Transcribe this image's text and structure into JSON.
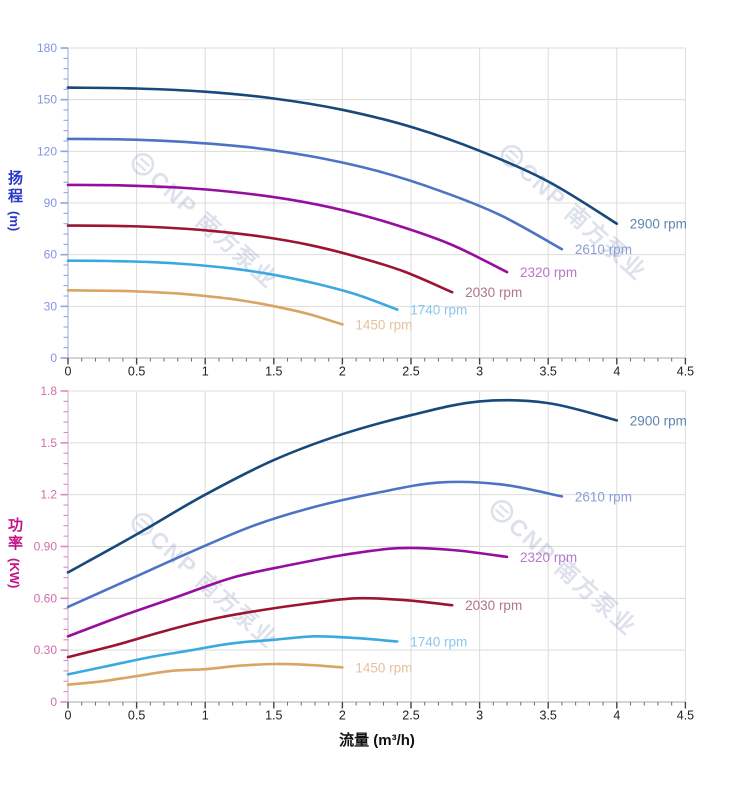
{
  "watermark": {
    "text": "CNP 南方泵业",
    "logo": "cnp-circle-logo",
    "color": "#7d8fba"
  },
  "xlabel": "流量 (m³/h)",
  "chart_data": [
    {
      "type": "line",
      "name": "head-curve-chart",
      "ylabel": "扬程",
      "ylabel_unit": "(m)",
      "ylim": [
        0,
        180
      ],
      "ytick_major": 30,
      "ytick_minor": 6,
      "ytick_labels": [
        "180",
        "150",
        "120",
        "90",
        "60",
        "30",
        "0"
      ],
      "xlim": [
        0,
        4.5
      ],
      "xtick_major": 0.5,
      "xtick_minor": 0.1,
      "xtick_labels": [
        "0",
        "0.5",
        "1",
        "1.5",
        "2",
        "2.5",
        "3",
        "3.5",
        "4",
        "4.5"
      ],
      "grid": "on",
      "legend_position": "end-of-curve",
      "axis_title_color": "#2638c8",
      "tick_label_color": "#8495e2",
      "tick_color": "#94a2e6",
      "series": [
        {
          "name": "2900 rpm",
          "color": "#17497a",
          "label_color": "#5d85ad",
          "x": [
            0,
            0.5,
            1,
            1.5,
            2,
            2.5,
            3,
            3.5,
            4
          ],
          "y": [
            157,
            156.5,
            154.6,
            150.7,
            144.1,
            134.2,
            120.3,
            102.5,
            78
          ]
        },
        {
          "name": "2610 rpm",
          "color": "#4d74c4",
          "label_color": "#8b9ed6",
          "x": [
            0,
            0.45,
            0.9,
            1.35,
            1.8,
            2.25,
            2.7,
            3.15,
            3.6
          ],
          "y": [
            127.2,
            126.8,
            125.2,
            122.1,
            116.7,
            108.7,
            97.4,
            83,
            63.2
          ]
        },
        {
          "name": "2320 rpm",
          "color": "#970da0",
          "label_color": "#b778c8",
          "x": [
            0,
            0.4,
            0.8,
            1.2,
            1.6,
            2,
            2.4,
            2.8,
            3.2
          ],
          "y": [
            100.5,
            100.2,
            99,
            96.4,
            92.2,
            85.9,
            77,
            65.6,
            49.9
          ]
        },
        {
          "name": "2030 rpm",
          "color": "#9c1432",
          "label_color": "#b17585",
          "x": [
            0,
            0.35,
            0.7,
            1.05,
            1.4,
            1.75,
            2.1,
            2.45,
            2.8
          ],
          "y": [
            76.9,
            76.7,
            75.8,
            73.8,
            70.6,
            65.8,
            58.9,
            50.2,
            38.2
          ]
        },
        {
          "name": "1740 rpm",
          "color": "#3aa9e0",
          "label_color": "#8ac7ee",
          "x": [
            0,
            0.3,
            0.6,
            0.9,
            1.2,
            1.5,
            1.8,
            2.1,
            2.4
          ],
          "y": [
            56.5,
            56.3,
            55.7,
            54.3,
            51.9,
            48.3,
            43.3,
            36.9,
            28.1
          ]
        },
        {
          "name": "1450 rpm",
          "color": "#d9a464",
          "label_color": "#e3c39c",
          "x": [
            0,
            0.25,
            0.5,
            0.75,
            1,
            1.25,
            1.5,
            1.75,
            2
          ],
          "y": [
            39.3,
            39.1,
            38.7,
            37.7,
            36,
            33.6,
            30.1,
            25.6,
            19.5
          ]
        }
      ]
    },
    {
      "type": "line",
      "name": "power-curve-chart",
      "ylabel": "功率",
      "ylabel_unit": "(KW)",
      "xlabel": "流量 (m³/h)",
      "ylim": [
        0,
        1.8
      ],
      "ytick_major": 0.3,
      "ytick_minor": 0.06,
      "ytick_labels": [
        "1.8",
        "1.5",
        "1.2",
        "0.90",
        "0.60",
        "0.30",
        "0"
      ],
      "xlim": [
        0,
        4.5
      ],
      "xtick_major": 0.5,
      "xtick_minor": 0.1,
      "xtick_labels": [
        "0",
        "0.5",
        "1",
        "1.5",
        "2",
        "2.5",
        "3",
        "3.5",
        "4",
        "4.5"
      ],
      "grid": "on",
      "legend_position": "end-of-curve",
      "axis_title_color": "#c21589",
      "tick_label_color": "#cf6fae",
      "tick_color": "#de8ac2",
      "series": [
        {
          "name": "2900 rpm",
          "color": "#17497a",
          "label_color": "#5d85ad",
          "x": [
            0,
            0.5,
            1,
            1.5,
            2,
            2.5,
            3,
            3.5,
            4
          ],
          "y": [
            0.75,
            0.97,
            1.2,
            1.4,
            1.55,
            1.66,
            1.74,
            1.73,
            1.63
          ]
        },
        {
          "name": "2610 rpm",
          "color": "#4d74c4",
          "label_color": "#8b9ed6",
          "x": [
            0,
            0.45,
            0.9,
            1.35,
            1.8,
            2.25,
            2.7,
            3.15,
            3.6
          ],
          "y": [
            0.55,
            0.71,
            0.87,
            1.02,
            1.13,
            1.21,
            1.27,
            1.26,
            1.19
          ]
        },
        {
          "name": "2320 rpm",
          "color": "#970da0",
          "label_color": "#b778c8",
          "x": [
            0,
            0.4,
            0.8,
            1.2,
            1.6,
            2,
            2.4,
            2.8,
            3.2
          ],
          "y": [
            0.38,
            0.5,
            0.61,
            0.72,
            0.79,
            0.85,
            0.89,
            0.88,
            0.84
          ]
        },
        {
          "name": "2030 rpm",
          "color": "#9c1432",
          "label_color": "#b17585",
          "x": [
            0,
            0.35,
            0.7,
            1.05,
            1.4,
            1.75,
            2.1,
            2.45,
            2.8
          ],
          "y": [
            0.26,
            0.33,
            0.41,
            0.48,
            0.53,
            0.57,
            0.6,
            0.59,
            0.56
          ]
        },
        {
          "name": "1740 rpm",
          "color": "#3aa9e0",
          "label_color": "#8ac7ee",
          "x": [
            0,
            0.3,
            0.6,
            0.9,
            1.2,
            1.5,
            1.8,
            2.1,
            2.4
          ],
          "y": [
            0.16,
            0.21,
            0.26,
            0.3,
            0.34,
            0.36,
            0.38,
            0.37,
            0.35
          ]
        },
        {
          "name": "1450 rpm",
          "color": "#d9a464",
          "label_color": "#e3c39c",
          "x": [
            0,
            0.25,
            0.5,
            0.75,
            1,
            1.25,
            1.5,
            1.75,
            2
          ],
          "y": [
            0.1,
            0.12,
            0.15,
            0.18,
            0.19,
            0.21,
            0.22,
            0.215,
            0.2
          ]
        }
      ]
    }
  ]
}
